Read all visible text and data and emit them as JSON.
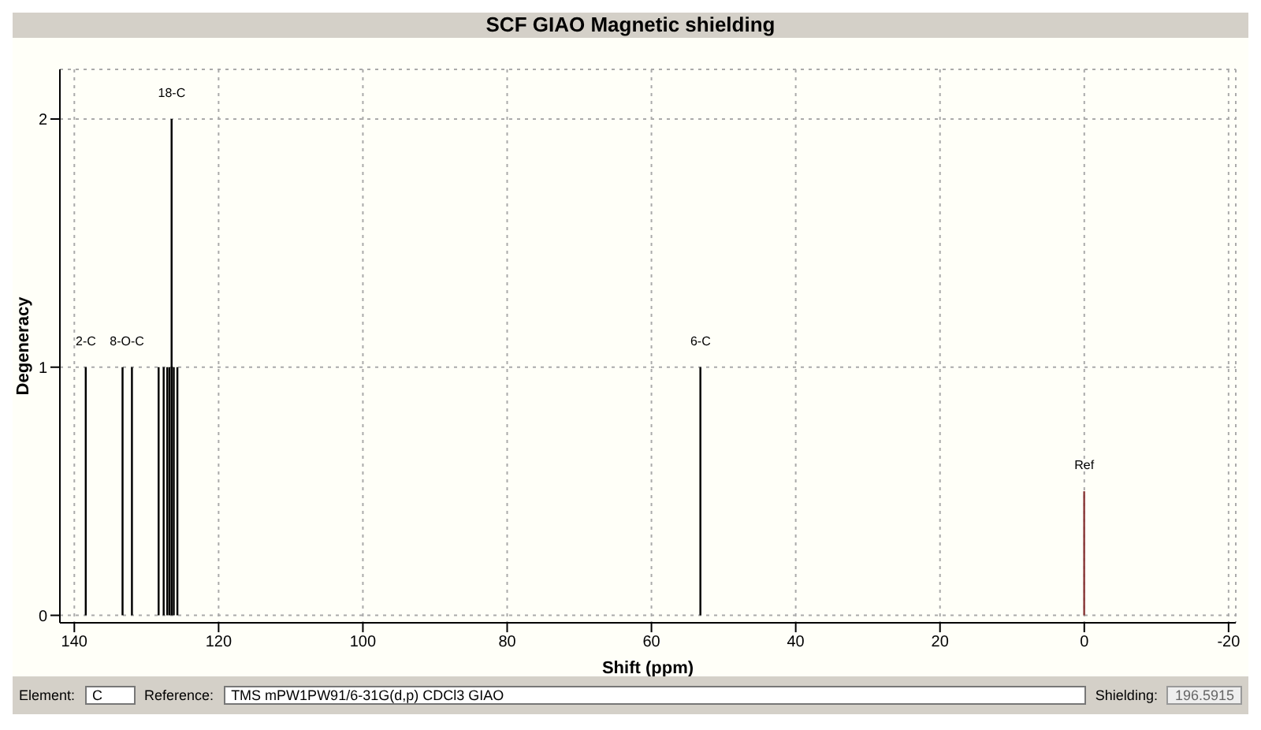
{
  "chart_data": {
    "type": "bar",
    "title": "SCF GIAO Magnetic shielding",
    "xlabel": "Shift (ppm)",
    "ylabel": "Degeneracy",
    "x": [
      138.4,
      133.3,
      132.0,
      128.3,
      127.6,
      127.1,
      126.8,
      126.5,
      126.2,
      125.7,
      53.2,
      0
    ],
    "values": [
      1,
      1,
      1,
      1,
      1,
      1,
      1,
      2,
      1,
      1,
      1,
      0.5
    ],
    "colors": [
      "#000000",
      "#000000",
      "#000000",
      "#000000",
      "#000000",
      "#000000",
      "#000000",
      "#000000",
      "#000000",
      "#000000",
      "#000000",
      "#8b3a3a"
    ],
    "xlim": [
      142,
      -21
    ],
    "xticks": [
      140,
      120,
      100,
      80,
      60,
      40,
      20,
      0,
      -20
    ],
    "ylim": [
      -0.03,
      2.2
    ],
    "yticks": [
      0,
      1,
      2
    ],
    "grid": true,
    "annotations": [
      {
        "text": "2-C",
        "x": 138.4,
        "y": 1
      },
      {
        "text": "8-O-C",
        "x": 132.7,
        "y": 1
      },
      {
        "text": "18-C",
        "x": 126.5,
        "y": 2
      },
      {
        "text": "6-C",
        "x": 53.2,
        "y": 1
      },
      {
        "text": "Ref",
        "x": 0,
        "y": 0.5
      },
      "Element:",
      "C",
      "Reference:",
      "TMS mPW1PW91/6-31G(d,p) CDCl3 GIAO",
      "Shielding:",
      "196.5915"
    ]
  }
}
